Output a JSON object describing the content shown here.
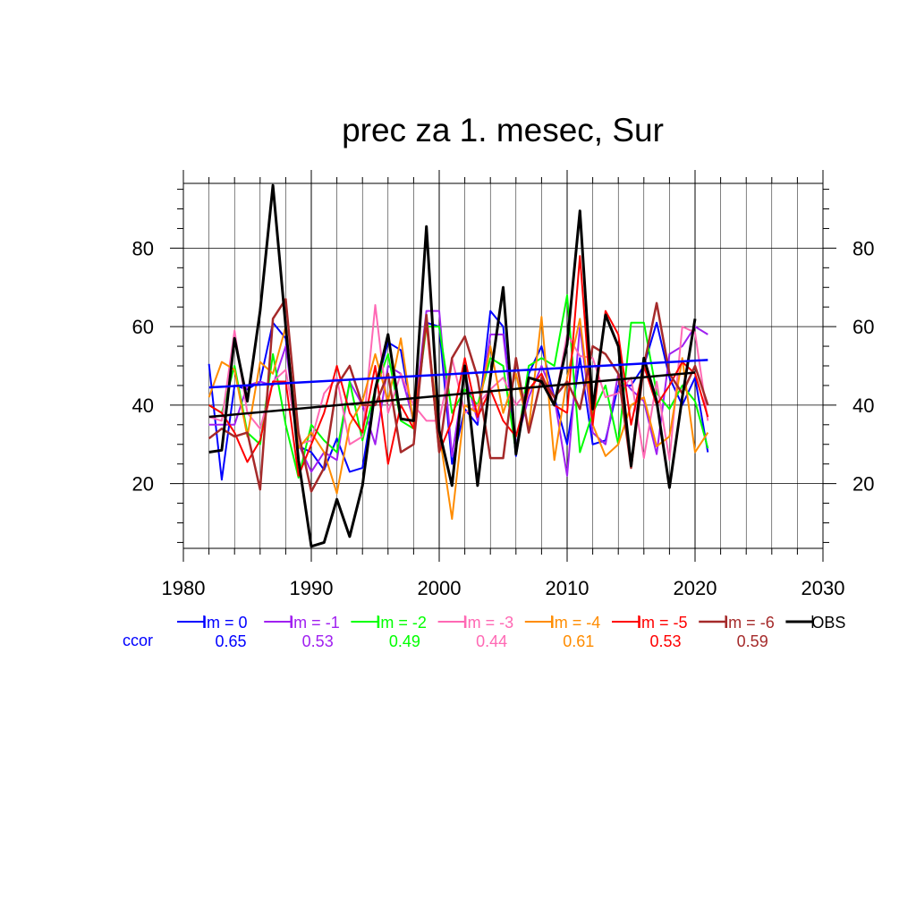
{
  "chart_data": {
    "type": "line",
    "title": "prec za 1. mesec, Sur",
    "xlabel": "",
    "ylabel": "",
    "xlim": [
      1980,
      2030
    ],
    "ylim": [
      3.5,
      96.5
    ],
    "x_ticks": [
      1980,
      1990,
      2000,
      2010,
      2020,
      2030
    ],
    "y_ticks": [
      20,
      40,
      60,
      80
    ],
    "x_tick_labels": [
      "1980",
      "1990",
      "2000",
      "2010",
      "2020",
      "2030"
    ],
    "y_tick_labels": [
      "20",
      "40",
      "60",
      "80"
    ],
    "grid": true,
    "legend_placement": "bottom",
    "ccor_label": "ccor",
    "x": [
      1982,
      1983,
      1984,
      1985,
      1986,
      1987,
      1988,
      1989,
      1990,
      1991,
      1992,
      1993,
      1994,
      1995,
      1996,
      1997,
      1998,
      1999,
      2000,
      2001,
      2002,
      2003,
      2004,
      2005,
      2006,
      2007,
      2008,
      2009,
      2010,
      2011,
      2012,
      2013,
      2014,
      2015,
      2016,
      2017,
      2018,
      2019,
      2020,
      2021
    ],
    "series": [
      {
        "name": "lm = 0",
        "color": "#0000ff",
        "ccor": "0.65",
        "width": 2,
        "values": [
          50.5,
          21,
          45,
          44,
          46,
          61,
          57,
          29.5,
          28,
          23.5,
          31.5,
          23,
          24,
          44,
          56,
          54,
          35,
          61,
          60,
          25,
          39,
          35,
          64,
          60,
          27,
          48,
          55,
          42,
          30,
          52,
          30,
          31,
          45,
          45,
          50,
          61,
          47,
          40,
          47,
          28
        ]
      },
      {
        "name": "lm = -1",
        "color": "#a020f0",
        "ccor": "0.53",
        "width": 2,
        "values": [
          35,
          35,
          35,
          45,
          46,
          45,
          55,
          30,
          23,
          28,
          26,
          46,
          40,
          30,
          50,
          48,
          36,
          64,
          64,
          27,
          48,
          36,
          58,
          58,
          30,
          42,
          50,
          42,
          22,
          60,
          33,
          30,
          48,
          44,
          41,
          27.5,
          53,
          55,
          60,
          58
        ]
      },
      {
        "name": "lm = -2",
        "color": "#00ff00",
        "ccor": "0.49",
        "width": 2,
        "values": [
          40,
          38,
          50,
          33,
          30,
          53,
          35,
          21.5,
          35,
          31,
          28,
          46,
          31,
          44,
          53,
          36,
          34,
          60,
          60,
          38,
          44,
          40,
          52,
          50,
          28,
          50,
          52,
          50,
          68,
          28,
          38,
          45,
          30,
          61,
          61,
          43,
          39,
          45,
          41,
          29
        ]
      },
      {
        "name": "lm = -3",
        "color": "#ff69b4",
        "ccor": "0.44",
        "width": 2,
        "values": [
          37,
          36,
          59,
          38,
          34,
          46,
          49,
          30,
          31,
          43,
          47,
          30,
          32,
          65.5,
          38,
          48,
          40,
          36,
          36,
          52,
          38,
          40,
          44,
          47,
          40,
          44,
          48,
          40,
          58,
          52.5,
          52,
          42,
          43,
          47,
          26.5,
          46,
          26,
          60,
          58.5,
          36
        ]
      },
      {
        "name": "lm = -4",
        "color": "#ff8c00",
        "ccor": "0.61",
        "width": 2,
        "values": [
          42,
          51,
          49,
          32,
          51,
          48,
          60,
          29,
          33,
          28,
          17.5,
          35,
          41,
          53,
          41,
          57,
          35,
          61,
          33,
          11,
          40,
          38,
          55,
          38,
          48,
          34,
          62.5,
          26,
          47,
          62,
          35,
          27,
          30,
          40,
          42,
          29.5,
          32,
          52,
          28,
          33
        ]
      },
      {
        "name": "lm = -5",
        "color": "#ff0000",
        "ccor": "0.53",
        "width": 2,
        "values": [
          40,
          38,
          33,
          25.5,
          31,
          46,
          46,
          22,
          30,
          38,
          50,
          38,
          33,
          50,
          25,
          40,
          34,
          61,
          28,
          36,
          52,
          37,
          44,
          36,
          32,
          44,
          48,
          40,
          38,
          78,
          35,
          64,
          58,
          35,
          50,
          40,
          45,
          51,
          48,
          37
        ]
      },
      {
        "name": "lm = -6",
        "color": "#a52a2a",
        "ccor": "0.59",
        "width": 2.5,
        "values": [
          31.5,
          34,
          32,
          33,
          18.5,
          62,
          67,
          33,
          18,
          24,
          45,
          50,
          40,
          40,
          48,
          28,
          30,
          63,
          28,
          52,
          57.5,
          47,
          26.5,
          26.5,
          52,
          33,
          47,
          42,
          46,
          39,
          55,
          53,
          48,
          24,
          50,
          66,
          48,
          43,
          50,
          40
        ]
      },
      {
        "name": "OBS",
        "color": "#000000",
        "ccor": "",
        "width": 3,
        "values": [
          28,
          28.5,
          57,
          41,
          64,
          96,
          60,
          26,
          4,
          5,
          16,
          6.5,
          19.5,
          44,
          58,
          36.5,
          36,
          85.5,
          33.5,
          19.5,
          50,
          19.5,
          47,
          70,
          27.5,
          47,
          46,
          40,
          55.5,
          89.5,
          39,
          63,
          55,
          24.5,
          52,
          41,
          19,
          42,
          62,
          null
        ]
      }
    ],
    "trend_lines": [
      {
        "series": "lm = 0",
        "color": "#0000ff",
        "x": [
          1982,
          2021
        ],
        "y": [
          44.5,
          51.5
        ]
      },
      {
        "series": "OBS",
        "color": "#000000",
        "x": [
          1982,
          2020
        ],
        "y": [
          37,
          48.3
        ]
      }
    ]
  }
}
